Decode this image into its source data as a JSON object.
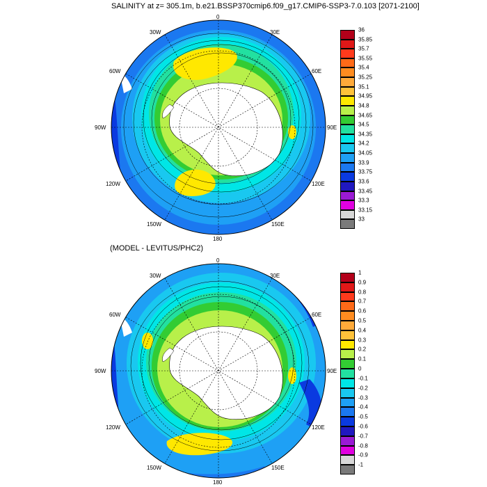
{
  "titles": {
    "top": "SALINITY at z= 305.1m, b.e21.BSSP370cmip6.f09_g17.CMIP6-SSP3-7.0.103 [2071-2100]",
    "bottom": "(MODEL - LEVITUS/PHC2)"
  },
  "longitude_labels": {
    "lon_0": "0",
    "lon_30e": "30E",
    "lon_60e": "60E",
    "lon_90e": "90E",
    "lon_120e": "120E",
    "lon_150e": "150E",
    "lon_180": "180",
    "lon_150w": "150W",
    "lon_120w": "120W",
    "lon_90w": "90W",
    "lon_60w": "60W",
    "lon_30w": "30W"
  },
  "colorbars": {
    "top": {
      "labels": [
        "36",
        "35.85",
        "35.7",
        "35.55",
        "35.4",
        "35.25",
        "35.1",
        "34.95",
        "34.8",
        "34.65",
        "34.5",
        "34.35",
        "34.2",
        "34.05",
        "33.9",
        "33.75",
        "33.6",
        "33.45",
        "33.3",
        "33.15",
        "33"
      ],
      "colors": [
        "#b3001a",
        "#e01818",
        "#ff3a1c",
        "#ff6a18",
        "#ff8c20",
        "#ffaa3a",
        "#ffc23a",
        "#ffe800",
        "#b8f04a",
        "#33cc33",
        "#22e0a0",
        "#00e6e6",
        "#19c8f0",
        "#1ea0f5",
        "#1b78f0",
        "#0a3ae0",
        "#2018c0",
        "#9a1ad4",
        "#e000e0",
        "#d8d8d8",
        "#7a7a7a"
      ]
    },
    "bottom": {
      "labels": [
        "1",
        "0.9",
        "0.8",
        "0.7",
        "0.6",
        "0.5",
        "0.4",
        "0.3",
        "0.2",
        "0.1",
        "0",
        "-0.1",
        "-0.2",
        "-0.3",
        "-0.4",
        "-0.5",
        "-0.6",
        "-0.7",
        "-0.8",
        "-0.9",
        "-1"
      ],
      "colors": [
        "#b3001a",
        "#e01818",
        "#ff3a1c",
        "#ff6a18",
        "#ff8c20",
        "#ffaa3a",
        "#ffc23a",
        "#ffe800",
        "#b8f04a",
        "#33cc33",
        "#22e0a0",
        "#00e6e6",
        "#19c8f0",
        "#1ea0f5",
        "#1b78f0",
        "#0a3ae0",
        "#2018c0",
        "#9a1ad4",
        "#e000e0",
        "#d8d8d8",
        "#7a7a7a"
      ]
    }
  }
}
